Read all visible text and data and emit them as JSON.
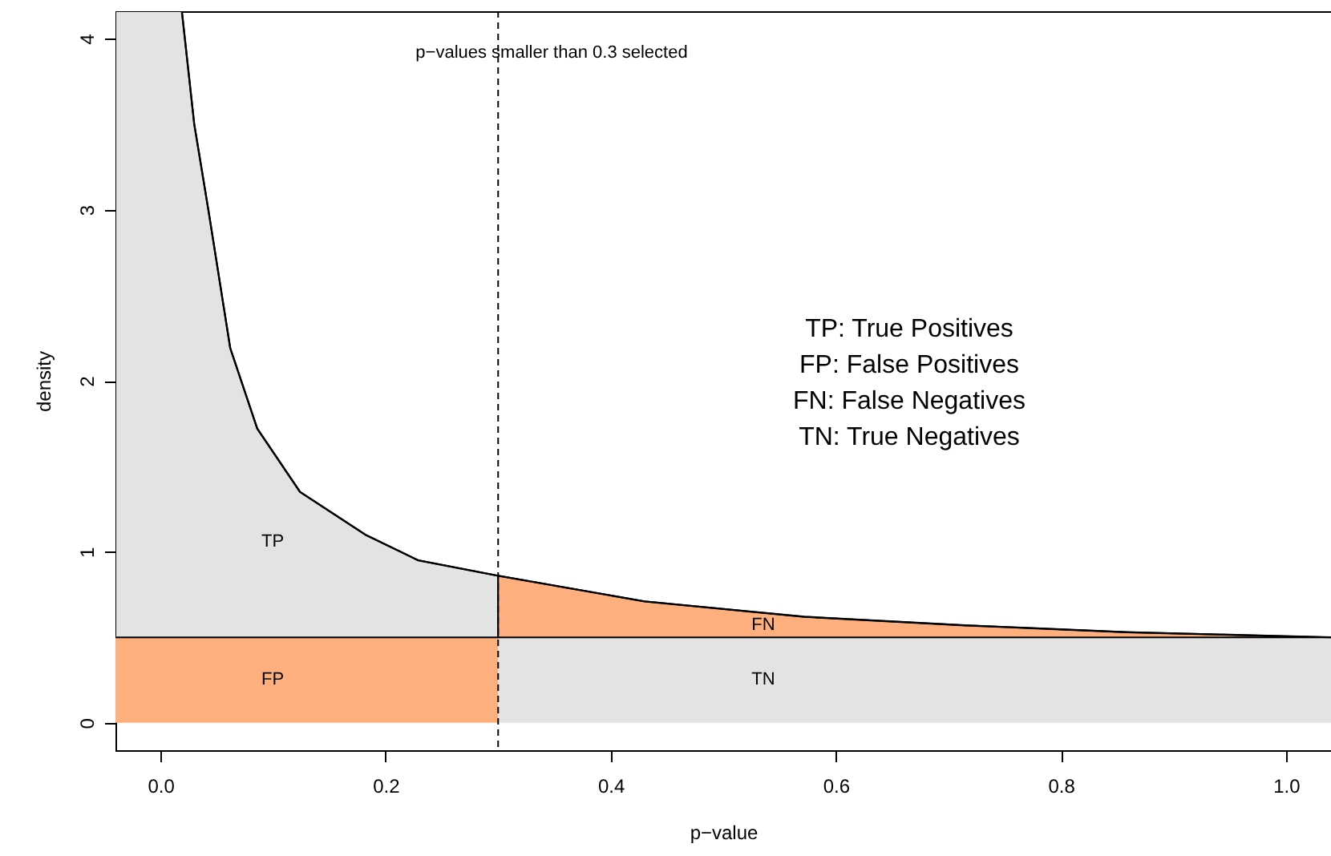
{
  "chart_data": {
    "type": "line",
    "xlabel": "p−value",
    "ylabel": "density",
    "xlim": [
      -0.04,
      1.04
    ],
    "ylim": [
      -0.16,
      4.16
    ],
    "xticks": [
      {
        "value": 0,
        "label": "0.0"
      },
      0.2,
      0.4,
      0.6,
      0.8,
      {
        "value": 1,
        "label": "1.0"
      }
    ],
    "yticks": [
      0,
      1,
      2,
      3,
      4
    ],
    "grid": false,
    "stacked": true,
    "x": [
      -0.04,
      0.019,
      0.03,
      0.043,
      0.062,
      0.086,
      0.124,
      0.182,
      0.229,
      0.3,
      0.3,
      0.43,
      0.572,
      0.715,
      0.858,
      0.977,
      1.04
    ],
    "series": [
      {
        "type": "area",
        "color": "#fdb07e",
        "values": [
          0.5,
          0.5,
          0.5,
          0.5,
          0.5,
          0.5,
          0.5,
          0.5,
          0.5,
          0.5,
          null,
          null,
          null,
          null,
          null,
          null,
          null
        ]
      },
      {
        "type": "area",
        "color": "#e3e3e3",
        "values": [
          null,
          null,
          null,
          null,
          null,
          null,
          null,
          null,
          null,
          null,
          0.5,
          0.5,
          0.5,
          0.5,
          0.5,
          0.5,
          0.5
        ]
      },
      {
        "type": "area",
        "color": "#e3e3e3",
        "values": [
          3.66,
          3.66,
          3.0,
          2.48,
          1.69,
          1.22,
          0.85,
          0.6,
          0.45,
          0.36,
          null,
          null,
          null,
          null,
          null,
          null,
          null
        ]
      },
      {
        "type": "area",
        "color": "#fdb07e",
        "values": [
          null,
          null,
          null,
          null,
          null,
          null,
          null,
          null,
          null,
          null,
          0.36,
          0.21,
          0.12,
          0.07,
          0.03,
          0.01,
          0
        ]
      },
      {
        "color": "#000000",
        "x": [
          0.019,
          0.03,
          0.043,
          0.062,
          0.086,
          0.124,
          0.182,
          0.229,
          0.3,
          0.43,
          0.572,
          0.715,
          0.858,
          0.977,
          1.04
        ],
        "values": [
          4.16,
          3.5,
          2.98,
          2.19,
          1.72,
          1.35,
          1.1,
          0.95,
          0.86,
          0.71,
          0.62,
          0.57,
          0.53,
          0.51,
          0.5
        ]
      }
    ],
    "ref_lines": [
      {
        "axis": "x",
        "value": 0.3,
        "color": "#000000",
        "line_style": "dashed"
      }
    ],
    "annotations": [
      "TP",
      "FP",
      "FN",
      "TN",
      "p−values smaller than 0.3 selected",
      "TP: True Positives",
      "FP: False Positives",
      "FN: False Negatives",
      "TN: True Negatives"
    ]
  }
}
